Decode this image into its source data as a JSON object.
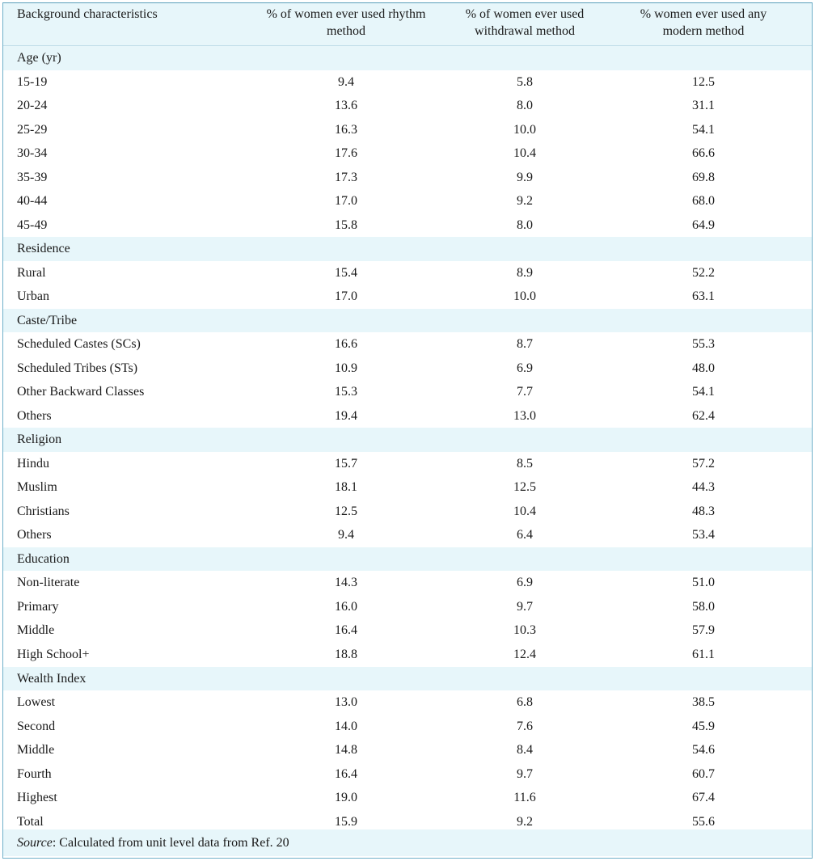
{
  "table": {
    "headers": [
      "Background characteristics",
      "% of women ever used rhythm method",
      "% of women ever used withdrawal method",
      "% women ever used any modern method"
    ],
    "rows": [
      {
        "label": "Age (yr)",
        "values": [
          "",
          "",
          ""
        ],
        "section": true
      },
      {
        "label": "15-19",
        "values": [
          "9.4",
          "5.8",
          "12.5"
        ]
      },
      {
        "label": "20-24",
        "values": [
          "13.6",
          "8.0",
          "31.1"
        ]
      },
      {
        "label": "25-29",
        "values": [
          "16.3",
          "10.0",
          "54.1"
        ]
      },
      {
        "label": "30-34",
        "values": [
          "17.6",
          "10.4",
          "66.6"
        ]
      },
      {
        "label": "35-39",
        "values": [
          "17.3",
          "9.9",
          "69.8"
        ]
      },
      {
        "label": "40-44",
        "values": [
          "17.0",
          "9.2",
          "68.0"
        ]
      },
      {
        "label": "45-49",
        "values": [
          "15.8",
          "8.0",
          "64.9"
        ]
      },
      {
        "label": "Residence",
        "values": [
          "",
          "",
          ""
        ],
        "section": true
      },
      {
        "label": "Rural",
        "values": [
          "15.4",
          "8.9",
          "52.2"
        ]
      },
      {
        "label": "Urban",
        "values": [
          "17.0",
          "10.0",
          "63.1"
        ]
      },
      {
        "label": "Caste/Tribe",
        "values": [
          "",
          "",
          ""
        ],
        "section": true
      },
      {
        "label": "Scheduled Castes (SCs)",
        "values": [
          "16.6",
          "8.7",
          "55.3"
        ]
      },
      {
        "label": "Scheduled Tribes (STs)",
        "values": [
          "10.9",
          "6.9",
          "48.0"
        ]
      },
      {
        "label": "Other Backward Classes",
        "values": [
          "15.3",
          "7.7",
          "54.1"
        ]
      },
      {
        "label": "Others",
        "values": [
          "19.4",
          "13.0",
          "62.4"
        ]
      },
      {
        "label": "Religion",
        "values": [
          "",
          "",
          ""
        ],
        "section": true
      },
      {
        "label": "Hindu",
        "values": [
          "15.7",
          "8.5",
          "57.2"
        ]
      },
      {
        "label": "Muslim",
        "values": [
          "18.1",
          "12.5",
          "44.3"
        ]
      },
      {
        "label": "Christians",
        "values": [
          "12.5",
          "10.4",
          "48.3"
        ]
      },
      {
        "label": "Others",
        "values": [
          "9.4",
          "6.4",
          "53.4"
        ]
      },
      {
        "label": "Education",
        "values": [
          "",
          "",
          ""
        ],
        "section": true
      },
      {
        "label": "Non-literate",
        "values": [
          "14.3",
          "6.9",
          "51.0"
        ]
      },
      {
        "label": "Primary",
        "values": [
          "16.0",
          "9.7",
          "58.0"
        ]
      },
      {
        "label": "Middle",
        "values": [
          "16.4",
          "10.3",
          "57.9"
        ]
      },
      {
        "label": "High School+",
        "values": [
          "18.8",
          "12.4",
          "61.1"
        ]
      },
      {
        "label": "Wealth Index",
        "values": [
          "",
          "",
          ""
        ],
        "section": true
      },
      {
        "label": "Lowest",
        "values": [
          "13.0",
          "6.8",
          "38.5"
        ]
      },
      {
        "label": "Second",
        "values": [
          "14.0",
          "7.6",
          "45.9"
        ]
      },
      {
        "label": "Middle",
        "values": [
          "14.8",
          "8.4",
          "54.6"
        ]
      },
      {
        "label": "Fourth",
        "values": [
          "16.4",
          "9.7",
          "60.7"
        ]
      },
      {
        "label": "Highest",
        "values": [
          "19.0",
          "11.6",
          "67.4"
        ]
      },
      {
        "label": "Total",
        "values": [
          "15.9",
          "9.2",
          "55.6"
        ]
      }
    ],
    "footnote": {
      "label": "Source",
      "text": ": Calculated from unit level data from Ref. 20"
    }
  },
  "colors": {
    "band": "#e7f6fa",
    "border": "#6fb0c9"
  }
}
